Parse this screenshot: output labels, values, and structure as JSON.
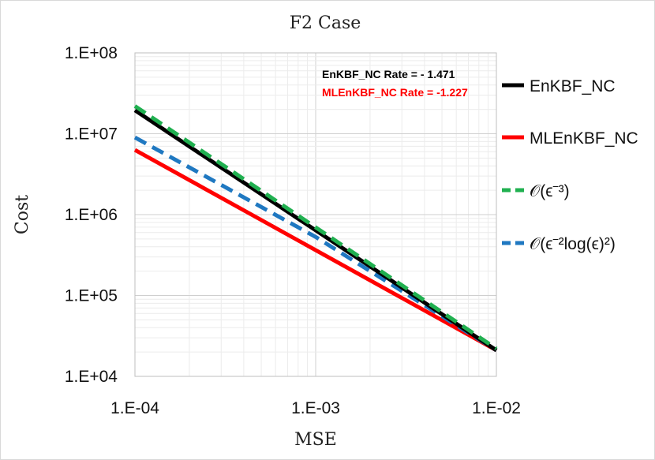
{
  "chart_data": {
    "type": "line",
    "title": "F2 Case",
    "xlabel": "MSE",
    "ylabel": "Cost",
    "xscale": "log",
    "yscale": "log",
    "xlim": [
      0.0001,
      0.01
    ],
    "ylim": [
      10000,
      100000000
    ],
    "xticks": [
      0.0001,
      0.001,
      0.01
    ],
    "xtick_labels": [
      "1.E-04",
      "1.E-03",
      "1.E-02"
    ],
    "yticks": [
      10000,
      100000,
      1000000,
      10000000,
      100000000
    ],
    "ytick_labels": [
      "1.E+04",
      "1.E+05",
      "1.E+06",
      "1.E+07",
      "1.E+08"
    ],
    "grid": true,
    "legend_position": "right",
    "series": [
      {
        "name": "EnKBF_NC",
        "color": "#000000",
        "dash": "solid",
        "x": [
          0.0001,
          0.01
        ],
        "y": [
          19500000,
          21000
        ]
      },
      {
        "name": "MLEnKBF_NC",
        "color": "#ff0000",
        "dash": "solid",
        "x": [
          0.0001,
          0.01
        ],
        "y": [
          6300000,
          21000
        ]
      },
      {
        "name": "𝒪(ϵ⁻³)",
        "color": "#20b050",
        "dash": "dashed",
        "x": [
          0.0001,
          0.01
        ],
        "y": [
          22000000,
          22000
        ]
      },
      {
        "name": "𝒪(ϵ⁻²log(ϵ)²)",
        "color": "#1f78c1",
        "dash": "dashed",
        "x": [
          0.0001,
          0.001,
          0.01
        ],
        "y": [
          9000000,
          529000,
          21000
        ]
      }
    ],
    "annotations": [
      {
        "text": "EnKBF_NC Rate = - 1.471",
        "color": "#000000"
      },
      {
        "text": "MLEnKBF_NC Rate = -1.227",
        "color": "#ff0000"
      }
    ]
  }
}
